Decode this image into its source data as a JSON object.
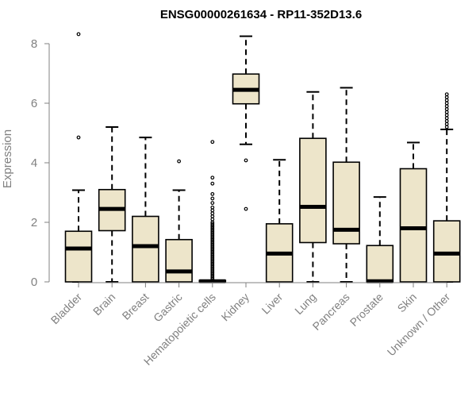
{
  "chart_data": {
    "type": "box",
    "title": "ENSG00000261634 - RP11-352D13.6",
    "xlabel": "",
    "ylabel": "Expression",
    "ylim": [
      0,
      8.3
    ],
    "yticks": [
      0,
      2,
      4,
      6,
      8
    ],
    "grid": false,
    "legend": "none",
    "box_fill": "#ede5ca",
    "categories": [
      "Bladder",
      "Brain",
      "Breast",
      "Gastric",
      "Hematopoietic cells",
      "Kidney",
      "Liver",
      "Lung",
      "Pancreas",
      "Prostate",
      "Skin",
      "Unknown / Other"
    ],
    "boxes": [
      {
        "whisker_low": 0,
        "q1": 0,
        "median": 1.12,
        "q3": 1.7,
        "whisker_high": 3.08,
        "outliers": [
          4.85,
          8.32
        ]
      },
      {
        "whisker_low": 0,
        "q1": 1.72,
        "median": 2.45,
        "q3": 3.1,
        "whisker_high": 5.2,
        "outliers": []
      },
      {
        "whisker_low": 0,
        "q1": 0,
        "median": 1.2,
        "q3": 2.2,
        "whisker_high": 4.85,
        "outliers": []
      },
      {
        "whisker_low": 0,
        "q1": 0,
        "median": 0.35,
        "q3": 1.42,
        "whisker_high": 3.08,
        "outliers": [
          4.05
        ]
      },
      {
        "whisker_low": 0,
        "q1": 0,
        "median": 0.02,
        "q3": 0.05,
        "whisker_high": 0.05,
        "outliers": [
          0.1,
          0.15,
          0.2,
          0.25,
          0.3,
          0.35,
          0.4,
          0.45,
          0.5,
          0.55,
          0.6,
          0.65,
          0.7,
          0.75,
          0.8,
          0.85,
          0.9,
          0.95,
          1.0,
          1.05,
          1.1,
          1.15,
          1.2,
          1.25,
          1.3,
          1.35,
          1.4,
          1.45,
          1.5,
          1.55,
          1.6,
          1.65,
          1.7,
          1.75,
          1.8,
          1.85,
          1.9,
          1.95,
          2.0,
          2.1,
          2.2,
          2.3,
          2.4,
          2.5,
          2.65,
          2.8,
          2.95,
          3.3,
          3.5,
          4.7
        ]
      },
      {
        "whisker_low": 4.62,
        "q1": 5.98,
        "median": 6.45,
        "q3": 6.98,
        "whisker_high": 8.25,
        "outliers": [
          2.45,
          4.08
        ]
      },
      {
        "whisker_low": 0,
        "q1": 0,
        "median": 0.95,
        "q3": 1.95,
        "whisker_high": 4.1,
        "outliers": []
      },
      {
        "whisker_low": 0,
        "q1": 1.32,
        "median": 2.52,
        "q3": 4.82,
        "whisker_high": 6.38,
        "outliers": []
      },
      {
        "whisker_low": 0,
        "q1": 1.28,
        "median": 1.75,
        "q3": 4.02,
        "whisker_high": 6.52,
        "outliers": []
      },
      {
        "whisker_low": 0,
        "q1": 0,
        "median": 0.02,
        "q3": 1.22,
        "whisker_high": 2.85,
        "outliers": []
      },
      {
        "whisker_low": 0,
        "q1": 0,
        "median": 1.8,
        "q3": 3.8,
        "whisker_high": 4.68,
        "outliers": []
      },
      {
        "whisker_low": 0,
        "q1": 0,
        "median": 0.95,
        "q3": 2.05,
        "whisker_high": 5.12,
        "outliers": [
          5.2,
          5.3,
          5.4,
          5.5,
          5.6,
          5.7,
          5.8,
          5.9,
          6.0,
          6.1,
          6.2,
          6.3
        ]
      }
    ]
  }
}
